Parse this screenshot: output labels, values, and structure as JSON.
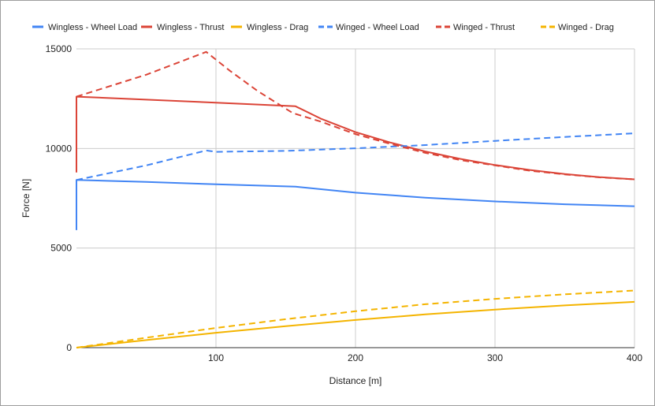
{
  "chart_data": {
    "type": "line",
    "title": "",
    "xlabel": "Distance [m]",
    "ylabel": "Force [N]",
    "xlim": [
      0,
      400
    ],
    "ylim": [
      0,
      15000
    ],
    "x_ticks": [
      "100",
      "200",
      "300",
      "400"
    ],
    "y_ticks": [
      "0",
      "5000",
      "10000",
      "15000"
    ],
    "grid": true,
    "legend_position": "top",
    "series": [
      {
        "name": "Wingless - Wheel Load",
        "color": "#4285f4",
        "dash": "solid",
        "points": [
          [
            0,
            5900
          ],
          [
            0,
            8420
          ],
          [
            50,
            8320
          ],
          [
            100,
            8200
          ],
          [
            157,
            8080
          ],
          [
            200,
            7780
          ],
          [
            250,
            7530
          ],
          [
            300,
            7340
          ],
          [
            350,
            7200
          ],
          [
            400,
            7100
          ]
        ]
      },
      {
        "name": "Wingless - Thrust",
        "color": "#db4437",
        "dash": "solid",
        "points": [
          [
            0,
            8800
          ],
          [
            0,
            12600
          ],
          [
            50,
            12450
          ],
          [
            100,
            12300
          ],
          [
            157,
            12120
          ],
          [
            175,
            11500
          ],
          [
            200,
            10820
          ],
          [
            225,
            10300
          ],
          [
            250,
            9850
          ],
          [
            275,
            9480
          ],
          [
            300,
            9170
          ],
          [
            325,
            8920
          ],
          [
            350,
            8720
          ],
          [
            375,
            8560
          ],
          [
            400,
            8450
          ]
        ]
      },
      {
        "name": "Wingless - Drag",
        "color": "#f4b400",
        "dash": "solid",
        "points": [
          [
            0,
            0
          ],
          [
            50,
            380
          ],
          [
            100,
            750
          ],
          [
            150,
            1080
          ],
          [
            200,
            1390
          ],
          [
            250,
            1670
          ],
          [
            300,
            1910
          ],
          [
            350,
            2120
          ],
          [
            400,
            2300
          ]
        ]
      },
      {
        "name": "Winged - Wheel Load",
        "color": "#4285f4",
        "dash": "dashed",
        "points": [
          [
            0,
            8420
          ],
          [
            50,
            9150
          ],
          [
            93,
            9900
          ],
          [
            100,
            9830
          ],
          [
            150,
            9880
          ],
          [
            200,
            10010
          ],
          [
            250,
            10170
          ],
          [
            300,
            10380
          ],
          [
            350,
            10580
          ],
          [
            400,
            10760
          ]
        ]
      },
      {
        "name": "Winged - Thrust",
        "color": "#db4437",
        "dash": "dashed",
        "points": [
          [
            0,
            12600
          ],
          [
            50,
            13700
          ],
          [
            93,
            14850
          ],
          [
            110,
            13900
          ],
          [
            130,
            12880
          ],
          [
            155,
            11780
          ],
          [
            175,
            11350
          ],
          [
            200,
            10720
          ],
          [
            225,
            10230
          ],
          [
            250,
            9780
          ],
          [
            275,
            9420
          ],
          [
            300,
            9150
          ],
          [
            325,
            8880
          ],
          [
            350,
            8700
          ],
          [
            375,
            8550
          ],
          [
            400,
            8450
          ]
        ]
      },
      {
        "name": "Winged - Drag",
        "color": "#f4b400",
        "dash": "dashed",
        "points": [
          [
            0,
            0
          ],
          [
            50,
            500
          ],
          [
            100,
            990
          ],
          [
            150,
            1430
          ],
          [
            200,
            1830
          ],
          [
            250,
            2180
          ],
          [
            300,
            2450
          ],
          [
            350,
            2680
          ],
          [
            400,
            2870
          ]
        ]
      }
    ]
  }
}
